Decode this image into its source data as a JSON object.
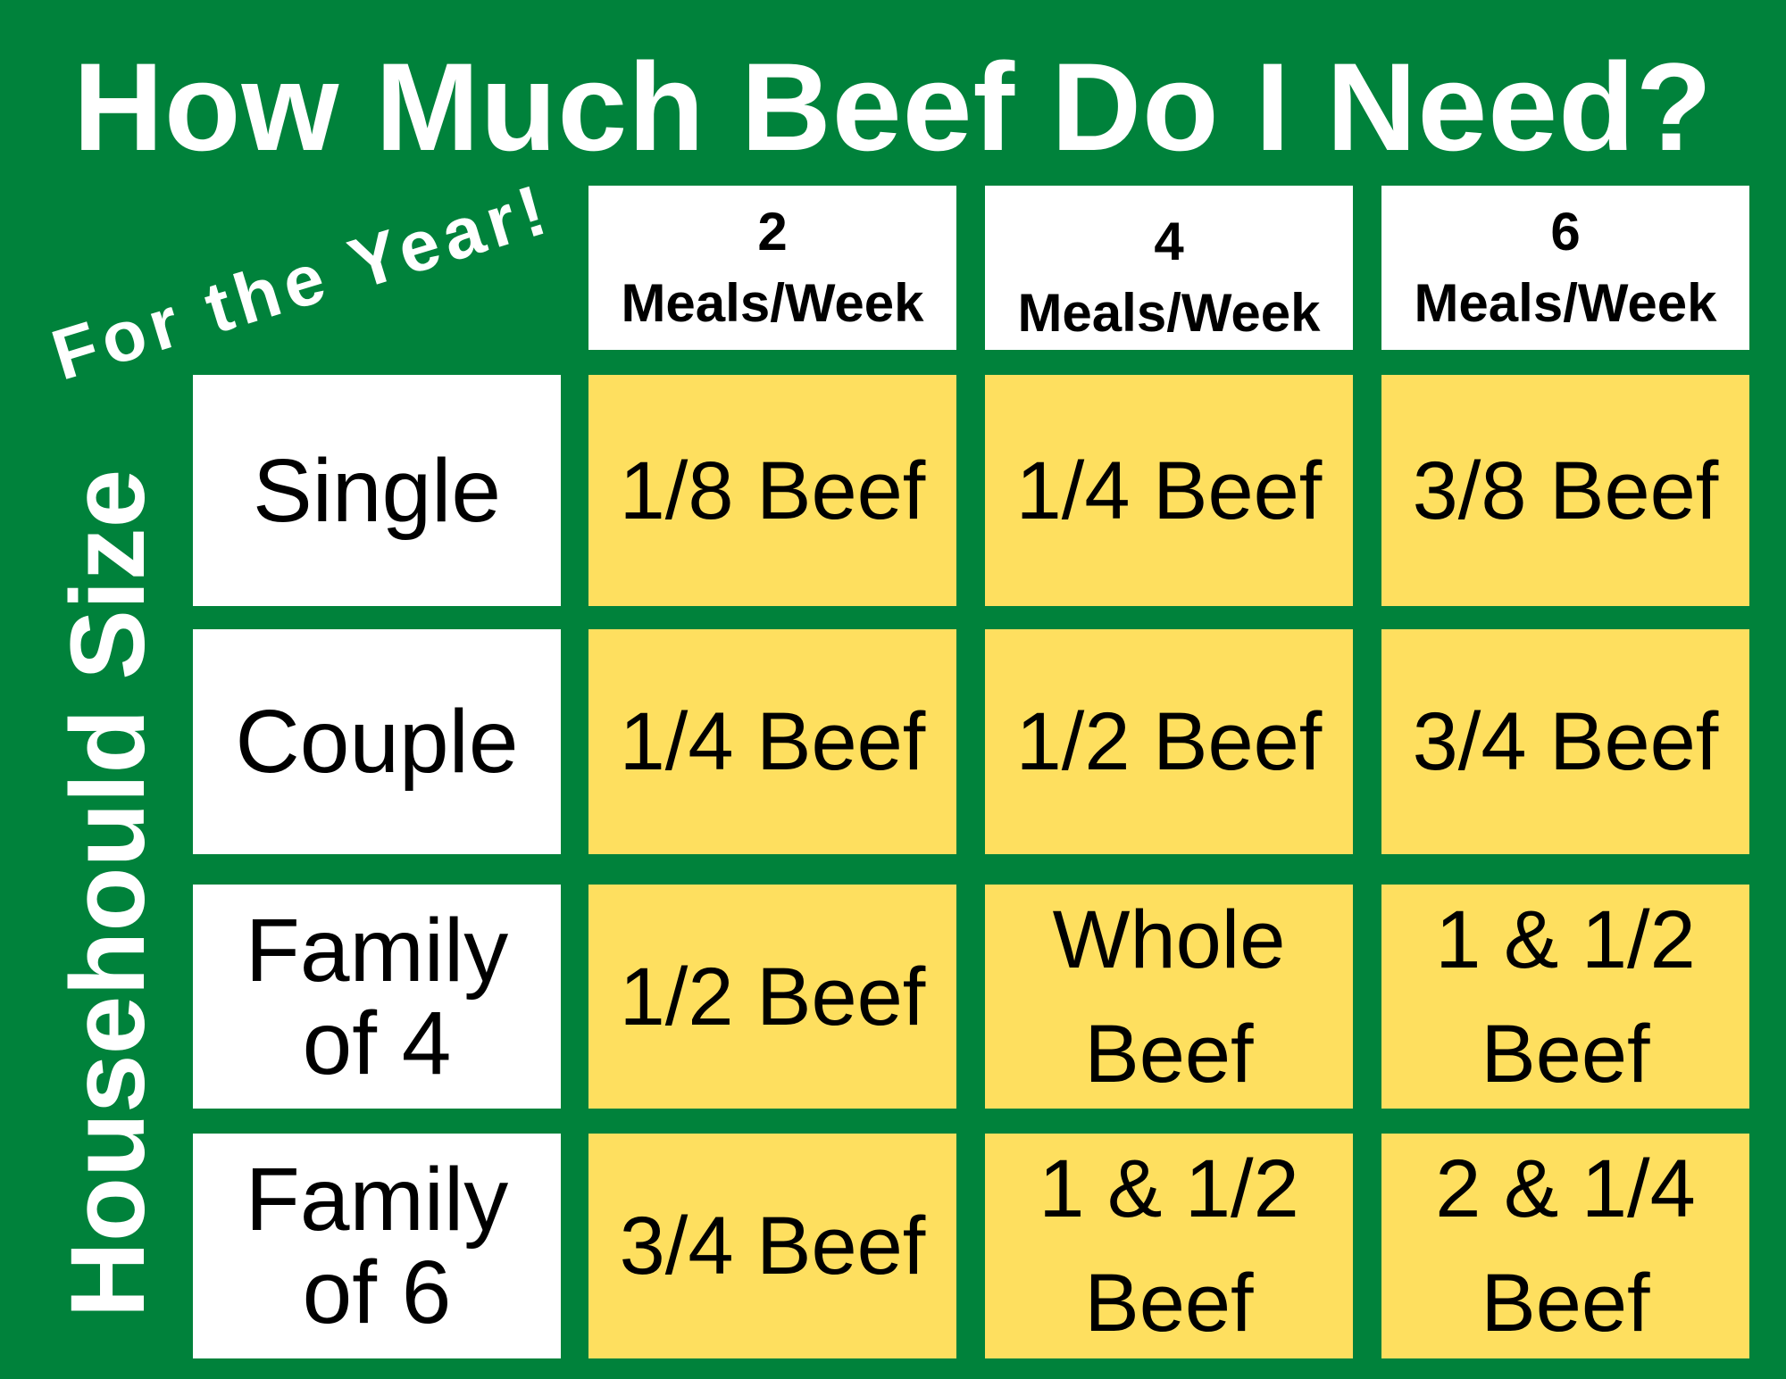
{
  "title": "How Much Beef Do I Need?",
  "subtitle": "For the Year!",
  "row_axis_label": "Househould Size",
  "colors": {
    "background": "#00823b",
    "header_cell": "#ffffff",
    "value_cell": "#fedf5f"
  },
  "columns": [
    {
      "count": "2",
      "unit": "Meals/Week"
    },
    {
      "count": "4",
      "unit": "Meals/Week"
    },
    {
      "count": "6",
      "unit": "Meals/Week"
    }
  ],
  "rows": [
    {
      "label": [
        "Single"
      ],
      "values": [
        [
          "1/8 Beef"
        ],
        [
          "1/4 Beef"
        ],
        [
          "3/8 Beef"
        ]
      ]
    },
    {
      "label": [
        "Couple"
      ],
      "values": [
        [
          "1/4 Beef"
        ],
        [
          "1/2 Beef"
        ],
        [
          "3/4 Beef"
        ]
      ]
    },
    {
      "label": [
        "Family",
        "of 4"
      ],
      "values": [
        [
          "1/2 Beef"
        ],
        [
          "Whole",
          "Beef"
        ],
        [
          "1 & 1/2",
          "Beef"
        ]
      ]
    },
    {
      "label": [
        "Family",
        "of 6"
      ],
      "values": [
        [
          "3/4 Beef"
        ],
        [
          "1 & 1/2",
          "Beef"
        ],
        [
          "2 & 1/4",
          "Beef"
        ]
      ]
    }
  ]
}
